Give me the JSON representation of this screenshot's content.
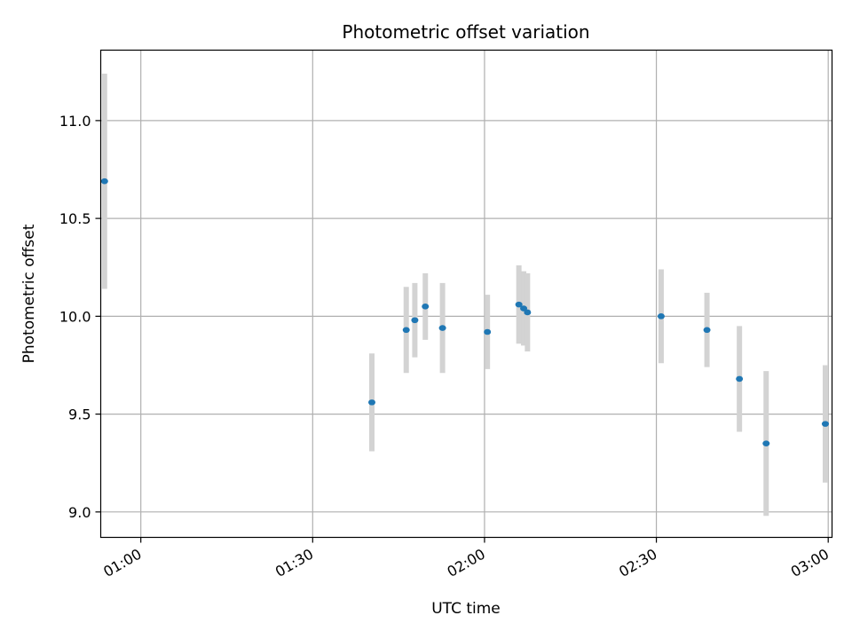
{
  "chart_data": {
    "type": "scatter",
    "title": "Photometric offset variation",
    "xlabel": "UTC time",
    "ylabel": "Photometric offset",
    "xlim": [
      "00:53:00",
      "03:00:40"
    ],
    "ylim": [
      8.87,
      11.36
    ],
    "x_ticks": [
      "01:00",
      "01:30",
      "02:00",
      "02:30",
      "03:00"
    ],
    "y_ticks": [
      "9.0",
      "9.5",
      "10.0",
      "10.5",
      "11.0"
    ],
    "grid": true,
    "colors": {
      "point": "#1f77b4",
      "errorbar": "#d3d3d3",
      "grid": "#b0b0b0",
      "axes": "#000000"
    },
    "points": [
      {
        "time": "00:53:40",
        "y": 10.69,
        "err": 0.55
      },
      {
        "time": "01:40:20",
        "y": 9.56,
        "err": 0.25
      },
      {
        "time": "01:46:20",
        "y": 9.93,
        "err": 0.22
      },
      {
        "time": "01:47:50",
        "y": 9.98,
        "err": 0.19
      },
      {
        "time": "01:49:40",
        "y": 10.05,
        "err": 0.17
      },
      {
        "time": "01:52:40",
        "y": 9.94,
        "err": 0.23
      },
      {
        "time": "02:00:30",
        "y": 9.92,
        "err": 0.19
      },
      {
        "time": "02:06:00",
        "y": 10.06,
        "err": 0.2
      },
      {
        "time": "02:06:50",
        "y": 10.04,
        "err": 0.19
      },
      {
        "time": "02:07:30",
        "y": 10.02,
        "err": 0.2
      },
      {
        "time": "02:30:50",
        "y": 10.0,
        "err": 0.24
      },
      {
        "time": "02:38:50",
        "y": 9.93,
        "err": 0.19
      },
      {
        "time": "02:44:30",
        "y": 9.68,
        "err": 0.27
      },
      {
        "time": "02:49:10",
        "y": 9.35,
        "err": 0.37
      },
      {
        "time": "02:59:30",
        "y": 9.45,
        "err": 0.3
      }
    ]
  }
}
